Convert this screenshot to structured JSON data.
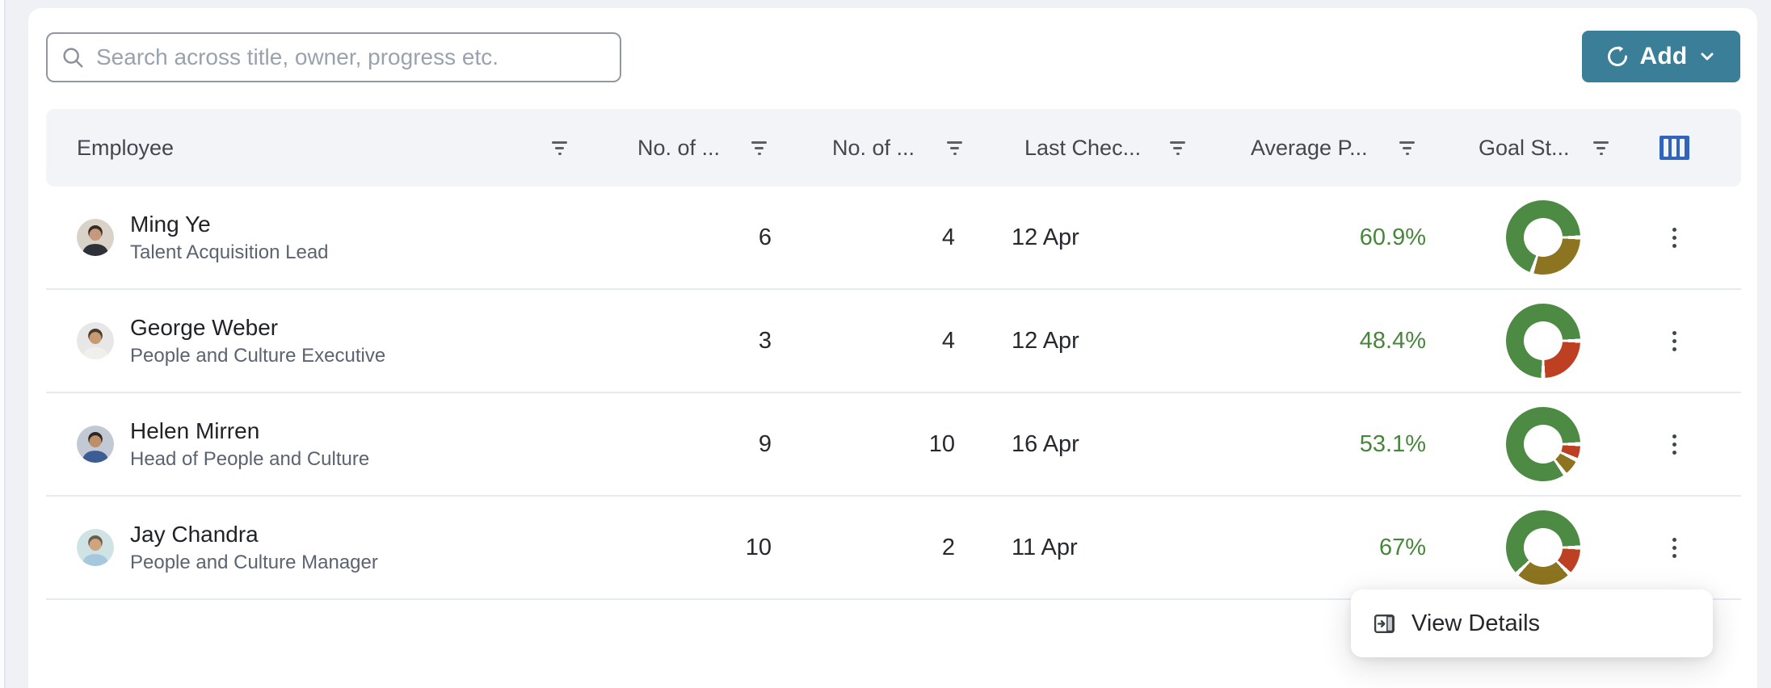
{
  "colors": {
    "accent_teal": "#3a7e98",
    "donut_green": "#4d8a43",
    "donut_olive": "#8d7420",
    "donut_red": "#bd4023",
    "progress_text_green": "#47873c",
    "columns_icon_blue": "#3164bb"
  },
  "search": {
    "placeholder": "Search across title, owner, progress etc."
  },
  "add_button": {
    "label": "Add"
  },
  "table": {
    "columns": [
      {
        "label": "Employee"
      },
      {
        "label": "No. of ..."
      },
      {
        "label": "No. of ..."
      },
      {
        "label": "Last Chec..."
      },
      {
        "label": "Average P..."
      },
      {
        "label": "Goal St..."
      }
    ],
    "rows": [
      {
        "name": "Ming Ye",
        "title": "Talent Acquisition Lead",
        "goals": "6",
        "checkins": "4",
        "last_checkin": "12 Apr",
        "avg_progress": "60.9%",
        "donut": [
          {
            "color": "green",
            "pct": 25
          },
          {
            "color": "olive",
            "pct": 30
          },
          {
            "color": "green",
            "pct": 45
          }
        ],
        "avatar": {
          "bg": "#d8d2c8",
          "hair": "#352b24",
          "head": "#c6997a",
          "body": "#2e3238"
        }
      },
      {
        "name": "George Weber",
        "title": "People and Culture Executive",
        "goals": "3",
        "checkins": "4",
        "last_checkin": "12 Apr",
        "avg_progress": "48.4%",
        "donut": [
          {
            "color": "green",
            "pct": 25
          },
          {
            "color": "red",
            "pct": 25
          },
          {
            "color": "green",
            "pct": 50
          }
        ],
        "avatar": {
          "bg": "#e7e7e8",
          "hair": "#4a3b2d",
          "head": "#c89a72",
          "body": "#f1efec"
        }
      },
      {
        "name": "Helen Mirren",
        "title": "Head of People and Culture",
        "goals": "9",
        "checkins": "10",
        "last_checkin": "16 Apr",
        "avg_progress": "53.1%",
        "donut": [
          {
            "color": "green",
            "pct": 25
          },
          {
            "color": "red",
            "pct": 7
          },
          {
            "color": "olive",
            "pct": 8
          },
          {
            "color": "green",
            "pct": 60
          }
        ],
        "avatar": {
          "bg": "#c2c9d4",
          "hair": "#2d2622",
          "head": "#bd8f66",
          "body": "#3c5d93"
        }
      },
      {
        "name": "Jay Chandra",
        "title": "People and Culture Manager",
        "goals": "10",
        "checkins": "2",
        "last_checkin": "11 Apr",
        "avg_progress": "67%",
        "donut": [
          {
            "color": "green",
            "pct": 25
          },
          {
            "color": "red",
            "pct": 12.5
          },
          {
            "color": "olive",
            "pct": 25
          },
          {
            "color": "green",
            "pct": 37.5
          }
        ],
        "avatar": {
          "bg": "#cfe3e4",
          "hair": "#6e5b44",
          "head": "#cda57e",
          "body": "#a5c8de"
        }
      }
    ]
  },
  "context_menu": {
    "items": [
      {
        "label": "View Details",
        "icon": "open-side-panel-icon"
      }
    ]
  }
}
